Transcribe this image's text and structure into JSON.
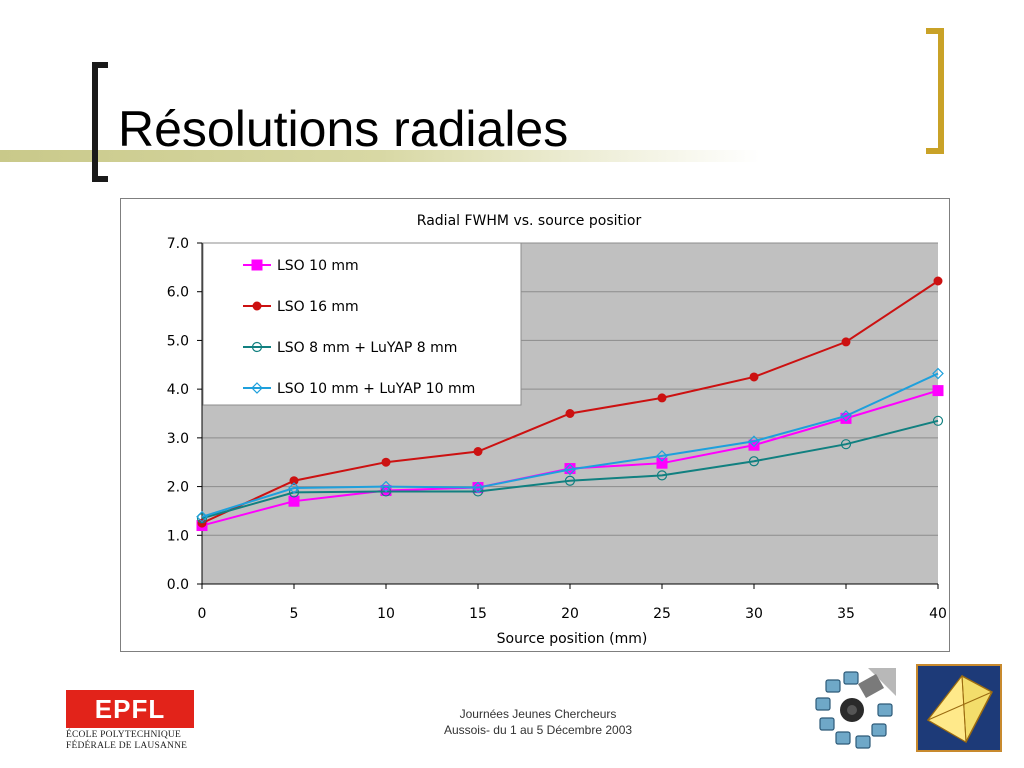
{
  "slide": {
    "title": "Résolutions radiales",
    "footer_line1": "Journées Jeunes Chercheurs",
    "footer_line2": "Aussois- du 1 au 5 Décembre 2003",
    "logo_epfl_mark": "EPFL",
    "logo_epfl_line1": "ÉCOLE POLYTECHNIQUE",
    "logo_epfl_line2": "FÉDÉRALE DE LAUSANNE"
  },
  "colors": {
    "plot_bg": "#c0c0c0",
    "gridline": "#8c8c8c",
    "bracket_left": "#1a1a1a",
    "bracket_right": "#c9a227",
    "title_band": "#c9c98a",
    "epfl_red": "#e2231a"
  },
  "chart_data": {
    "type": "line",
    "title": "Radial FWHM vs. source positior",
    "xlabel": "Source position (mm)",
    "ylabel": "",
    "x": [
      0,
      5,
      10,
      15,
      20,
      25,
      30,
      35,
      40
    ],
    "xlim": [
      0,
      40
    ],
    "ylim": [
      0,
      7
    ],
    "x_ticks": [
      "0",
      "5",
      "10",
      "15",
      "20",
      "25",
      "30",
      "35",
      "40"
    ],
    "y_ticks": [
      "0.0",
      "1.0",
      "2.0",
      "3.0",
      "4.0",
      "5.0",
      "6.0",
      "7.0"
    ],
    "grid": "horizontal",
    "legend_position": "top-left",
    "series": [
      {
        "name": "LSO 10 mm",
        "color": "#ff00ff",
        "marker": "square-filled",
        "values": [
          1.2,
          1.7,
          1.92,
          1.98,
          2.37,
          2.48,
          2.85,
          3.4,
          3.97
        ]
      },
      {
        "name": "LSO 16 mm",
        "color": "#cc1111",
        "marker": "circle-filled",
        "values": [
          1.25,
          2.12,
          2.5,
          2.72,
          3.5,
          3.82,
          4.25,
          4.97,
          6.22
        ]
      },
      {
        "name": "LSO 8 mm + LuYAP 8 mm",
        "color": "#118080",
        "marker": "circle-open",
        "values": [
          1.35,
          1.88,
          1.9,
          1.9,
          2.12,
          2.23,
          2.52,
          2.87,
          3.35
        ]
      },
      {
        "name": "LSO 10 mm + LuYAP 10 mm",
        "color": "#1ea0dc",
        "marker": "diamond-open",
        "values": [
          1.38,
          1.97,
          2.0,
          1.98,
          2.35,
          2.63,
          2.93,
          3.45,
          4.32
        ]
      }
    ]
  }
}
